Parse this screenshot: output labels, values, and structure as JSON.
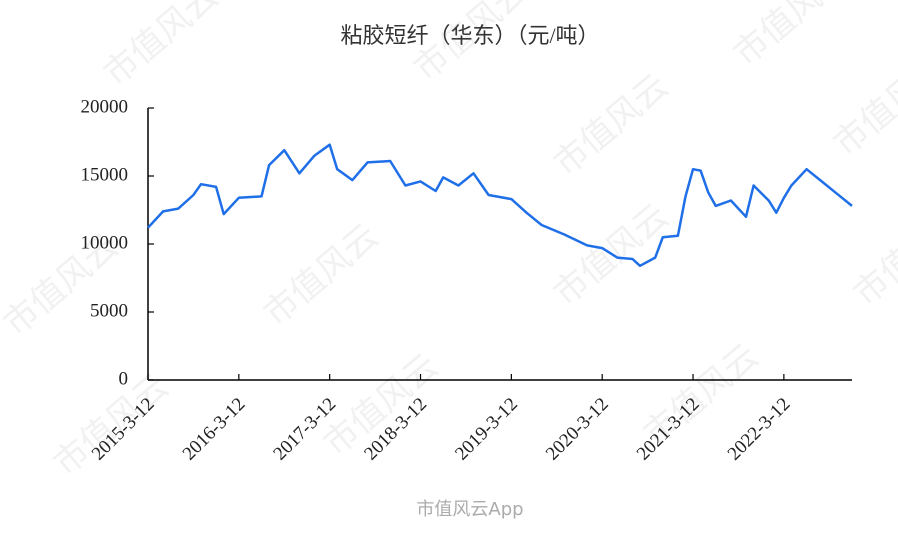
{
  "chart_data": {
    "type": "line",
    "title": "粘胶短纤（华东）（元/吨）",
    "x": [
      "2015-3",
      "2015-5",
      "2015-7",
      "2015-9",
      "2015-10",
      "2015-12",
      "2016-1",
      "2016-3",
      "2016-6",
      "2016-7",
      "2016-9",
      "2016-11",
      "2017-1",
      "2017-3",
      "2017-4",
      "2017-6",
      "2017-8",
      "2017-11",
      "2018-1",
      "2018-3",
      "2018-5",
      "2018-6",
      "2018-8",
      "2018-10",
      "2018-12",
      "2019-3",
      "2019-5",
      "2019-7",
      "2019-10",
      "2020-1",
      "2020-3",
      "2020-5",
      "2020-7",
      "2020-8",
      "2020-10",
      "2020-11",
      "2021-1",
      "2021-2",
      "2021-3",
      "2021-4",
      "2021-5",
      "2021-6",
      "2021-8",
      "2021-10",
      "2021-11",
      "2022-1",
      "2022-2",
      "2022-3",
      "2022-4",
      "2022-6",
      "2022-8",
      "2022-10",
      "2022-12"
    ],
    "series": [
      {
        "color": "#1f6fe8",
        "values": [
          11200,
          12400,
          12600,
          13600,
          14400,
          14200,
          12200,
          13400,
          13500,
          15800,
          16900,
          15200,
          16500,
          17300,
          15500,
          14700,
          16000,
          16100,
          14300,
          14600,
          13900,
          14900,
          14300,
          15200,
          13600,
          13300,
          12300,
          11400,
          10700,
          9900,
          9700,
          9000,
          8900,
          8400,
          9000,
          10500,
          10600,
          13500,
          15500,
          15400,
          13800,
          12800,
          13200,
          12000,
          14300,
          13200,
          12300,
          13400,
          14300,
          15500,
          14600,
          13700,
          12800
        ]
      }
    ],
    "xlim": [
      "2015-3-12",
      "2022-12"
    ],
    "xticks": [
      "2015-3-12",
      "2016-3-12",
      "2017-3-12",
      "2018-3-12",
      "2019-3-12",
      "2020-3-12",
      "2021-3-12",
      "2022-3-12"
    ],
    "ylim": [
      0,
      20000
    ],
    "yticks": [
      0,
      5000,
      10000,
      15000,
      20000
    ],
    "watermark": "市值风云",
    "footer_watermark": "市值风云App"
  }
}
